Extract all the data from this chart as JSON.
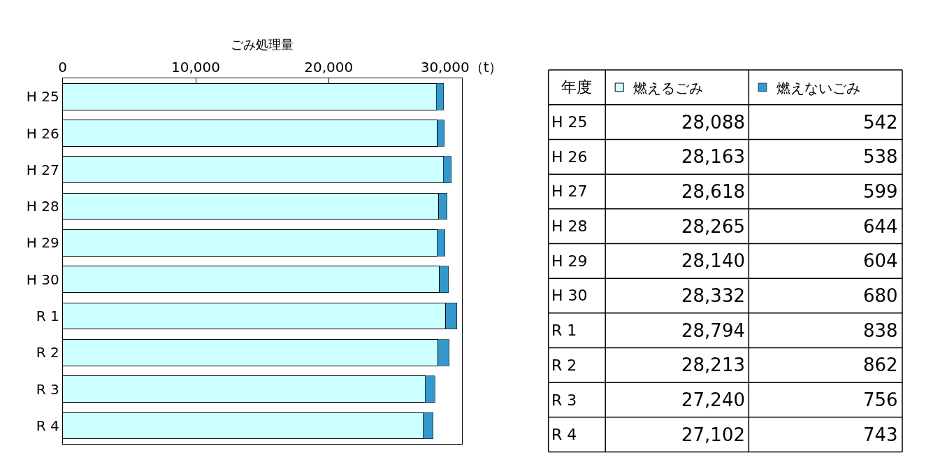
{
  "chart_data": {
    "type": "bar",
    "orientation": "horizontal",
    "stacked": true,
    "xlabel": "ごみ処理量",
    "categories": [
      "H 25",
      "H 26",
      "H 27",
      "H 28",
      "H 29",
      "H 30",
      "R 1",
      "R 2",
      "R 3",
      "R 4"
    ],
    "series": [
      {
        "name": "燃えるごみ",
        "color": "#ccffff",
        "values": [
          28088,
          28163,
          28618,
          28265,
          28140,
          28332,
          28794,
          28213,
          27240,
          27102
        ],
        "value_labels": [
          "28,088",
          "28,163",
          "28,618",
          "28,265",
          "28,140",
          "28,332",
          "28,794",
          "28,213",
          "27,240",
          "27,102"
        ]
      },
      {
        "name": "燃えないごみ",
        "color": "#3399cc",
        "values": [
          542,
          538,
          599,
          644,
          604,
          680,
          838,
          862,
          756,
          743
        ],
        "value_labels": [
          "542",
          "538",
          "599",
          "644",
          "604",
          "680",
          "838",
          "862",
          "756",
          "743"
        ]
      }
    ],
    "xlim": [
      0,
      30000
    ],
    "xticks": [
      0,
      {
        "value": 10000,
        "label": "10,000"
      },
      {
        "value": 20000,
        "label": "20,000"
      },
      {
        "value": 30000,
        "label": "30,000（t）"
      }
    ],
    "annotations": [
      "年度"
    ],
    "legend": "top right",
    "grid": false
  }
}
